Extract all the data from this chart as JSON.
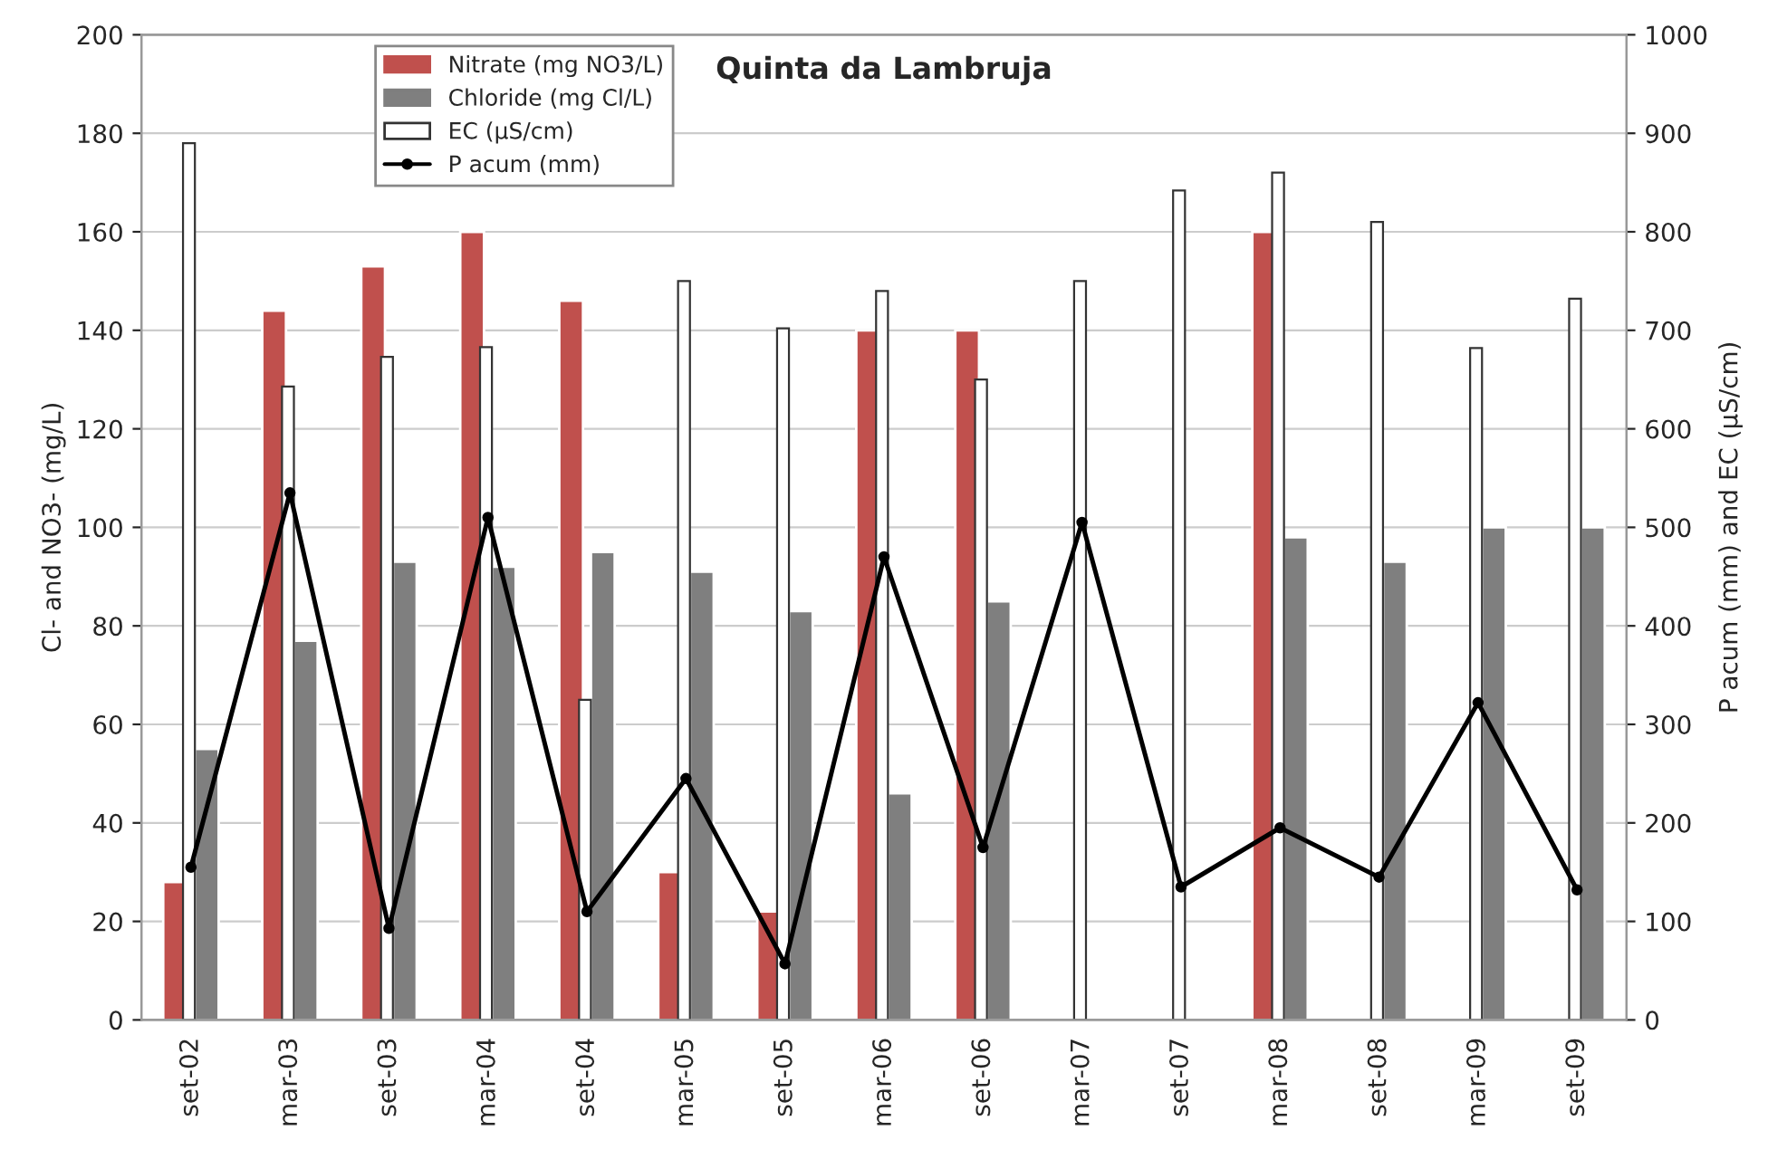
{
  "chart_data": {
    "type": "bar",
    "title": "Quinta da Lambruja",
    "categories": [
      "set-02",
      "mar-03",
      "set-03",
      "mar-04",
      "set-04",
      "mar-05",
      "set-05",
      "mar-06",
      "set-06",
      "mar-07",
      "set-07",
      "mar-08",
      "set-08",
      "mar-09",
      "set-09"
    ],
    "series": [
      {
        "name": "Nitrate (mg NO3/L)",
        "type": "bar",
        "color": "#c0504d",
        "values": [
          28,
          144,
          153,
          160,
          146,
          30,
          22,
          140,
          140,
          null,
          null,
          160,
          null,
          null,
          null
        ]
      },
      {
        "name": "Chloride (mg Cl/L)",
        "type": "bar",
        "color": "#7f7f7f",
        "values": [
          55,
          77,
          93,
          92,
          95,
          91,
          83,
          46,
          85,
          null,
          null,
          98,
          93,
          100,
          100
        ]
      },
      {
        "name": "EC (µS/cm)",
        "type": "bar",
        "color": "#ffffff",
        "axis": "y2",
        "values": [
          890,
          643,
          673,
          683,
          325,
          750,
          702,
          740,
          650,
          750,
          842,
          860,
          810,
          682,
          732
        ]
      },
      {
        "name": "P acum (mm)",
        "type": "line",
        "color": "#000000",
        "axis": "y2",
        "marker": "circle",
        "values": [
          155,
          535,
          93,
          510,
          110,
          245,
          57,
          470,
          175,
          505,
          135,
          195,
          145,
          322,
          132
        ]
      }
    ],
    "ylabel": "Cl- and NO3- (mg/L)",
    "y2label": "P acum (mm) and EC (µS/cm)",
    "ylim": [
      0,
      200
    ],
    "yticks": [
      0,
      20,
      40,
      60,
      80,
      100,
      120,
      140,
      160,
      180,
      200
    ],
    "y2lim": [
      0,
      1000
    ],
    "y2ticks": [
      0,
      100,
      200,
      300,
      400,
      500,
      600,
      700,
      800,
      900,
      1000
    ],
    "grid": "y",
    "legend": "top left"
  }
}
